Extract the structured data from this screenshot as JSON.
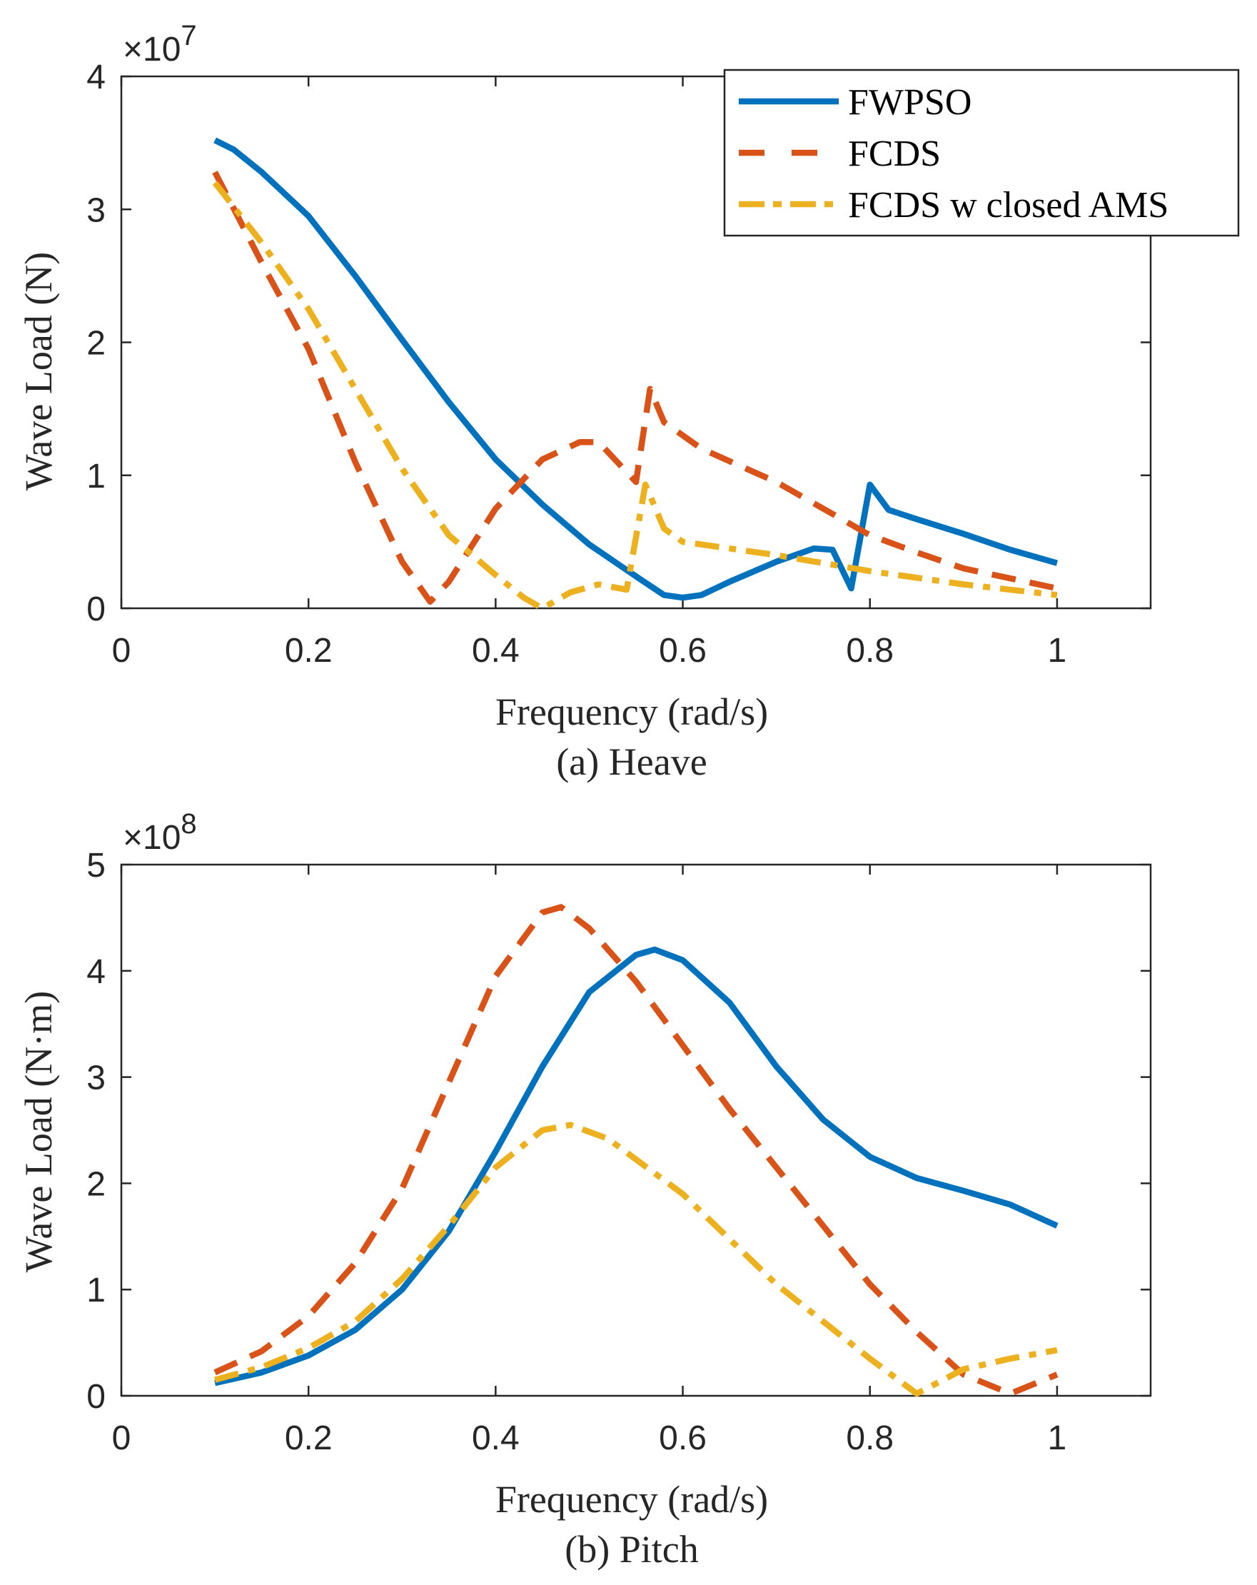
{
  "legend": [
    "FWPSO",
    "FCDS",
    "FCDS w closed AMS"
  ],
  "colors": {
    "FWPSO": "#0072BD",
    "FCDS": "#D95319",
    "FCDS w closed AMS": "#EDB120"
  },
  "chart_data": [
    {
      "type": "line",
      "title": "(a) Heave",
      "xlabel": "Frequency (rad/s)",
      "ylabel": "Wave Load (N)",
      "y_multiplier": "×10",
      "y_exponent": "7",
      "xlim": [
        0,
        1.1
      ],
      "ylim": [
        0,
        4
      ],
      "xticks": [
        "0",
        "0.2",
        "0.4",
        "0.6",
        "0.8",
        "1"
      ],
      "yticks": [
        "0",
        "1",
        "2",
        "3",
        "4"
      ],
      "legend_position": "top-right",
      "series": [
        {
          "name": "FWPSO",
          "style": "solid",
          "x": [
            0.1,
            0.12,
            0.15,
            0.2,
            0.25,
            0.3,
            0.35,
            0.4,
            0.45,
            0.5,
            0.55,
            0.58,
            0.6,
            0.62,
            0.65,
            0.7,
            0.74,
            0.76,
            0.78,
            0.8,
            0.82,
            0.85,
            0.9,
            0.95,
            1.0
          ],
          "y": [
            3.52,
            3.45,
            3.28,
            2.95,
            2.5,
            2.02,
            1.55,
            1.12,
            0.78,
            0.48,
            0.24,
            0.1,
            0.08,
            0.1,
            0.2,
            0.35,
            0.45,
            0.44,
            0.15,
            0.93,
            0.74,
            0.67,
            0.56,
            0.44,
            0.34
          ]
        },
        {
          "name": "FCDS",
          "style": "dashed",
          "x": [
            0.1,
            0.15,
            0.2,
            0.25,
            0.3,
            0.33,
            0.35,
            0.4,
            0.45,
            0.49,
            0.51,
            0.55,
            0.565,
            0.58,
            0.62,
            0.7,
            0.8,
            0.85,
            0.9,
            1.0
          ],
          "y": [
            3.28,
            2.6,
            1.95,
            1.1,
            0.35,
            0.05,
            0.2,
            0.75,
            1.12,
            1.25,
            1.25,
            0.95,
            1.65,
            1.4,
            1.2,
            0.95,
            0.55,
            0.42,
            0.3,
            0.15
          ]
        },
        {
          "name": "FCDS w closed AMS",
          "style": "dashdot",
          "x": [
            0.1,
            0.15,
            0.2,
            0.25,
            0.3,
            0.35,
            0.4,
            0.43,
            0.45,
            0.48,
            0.51,
            0.54,
            0.56,
            0.58,
            0.6,
            0.7,
            0.8,
            0.9,
            1.0
          ],
          "y": [
            3.2,
            2.75,
            2.25,
            1.65,
            1.05,
            0.55,
            0.25,
            0.08,
            0.0,
            0.12,
            0.18,
            0.14,
            0.93,
            0.6,
            0.5,
            0.4,
            0.28,
            0.18,
            0.1
          ]
        }
      ]
    },
    {
      "type": "line",
      "title": "(b) Pitch",
      "xlabel": "Frequency (rad/s)",
      "ylabel": "Wave Load (N·m)",
      "y_multiplier": "×10",
      "y_exponent": "8",
      "xlim": [
        0,
        1.1
      ],
      "ylim": [
        0,
        5
      ],
      "xticks": [
        "0",
        "0.2",
        "0.4",
        "0.6",
        "0.8",
        "1"
      ],
      "yticks": [
        "0",
        "1",
        "2",
        "3",
        "4",
        "5"
      ],
      "series": [
        {
          "name": "FWPSO",
          "style": "solid",
          "x": [
            0.1,
            0.15,
            0.2,
            0.25,
            0.3,
            0.35,
            0.4,
            0.45,
            0.5,
            0.55,
            0.57,
            0.6,
            0.65,
            0.7,
            0.75,
            0.8,
            0.85,
            0.9,
            0.95,
            1.0
          ],
          "y": [
            0.12,
            0.22,
            0.38,
            0.62,
            1.0,
            1.55,
            2.3,
            3.1,
            3.8,
            4.15,
            4.2,
            4.1,
            3.7,
            3.1,
            2.6,
            2.25,
            2.05,
            1.93,
            1.8,
            1.6
          ]
        },
        {
          "name": "FCDS",
          "style": "dashed",
          "x": [
            0.1,
            0.15,
            0.2,
            0.25,
            0.3,
            0.35,
            0.4,
            0.45,
            0.47,
            0.5,
            0.55,
            0.6,
            0.65,
            0.7,
            0.75,
            0.8,
            0.85,
            0.9,
            0.95,
            1.0
          ],
          "y": [
            0.22,
            0.42,
            0.75,
            1.25,
            1.95,
            2.95,
            3.95,
            4.55,
            4.6,
            4.4,
            3.9,
            3.3,
            2.7,
            2.15,
            1.6,
            1.05,
            0.6,
            0.2,
            0.02,
            0.2
          ]
        },
        {
          "name": "FCDS w closed AMS",
          "style": "dashdot",
          "x": [
            0.1,
            0.15,
            0.2,
            0.25,
            0.3,
            0.35,
            0.4,
            0.45,
            0.48,
            0.52,
            0.6,
            0.7,
            0.8,
            0.85,
            0.9,
            0.95,
            1.0
          ],
          "y": [
            0.15,
            0.27,
            0.45,
            0.7,
            1.1,
            1.6,
            2.15,
            2.5,
            2.55,
            2.42,
            1.9,
            1.05,
            0.35,
            0.02,
            0.25,
            0.35,
            0.43
          ]
        }
      ]
    }
  ]
}
